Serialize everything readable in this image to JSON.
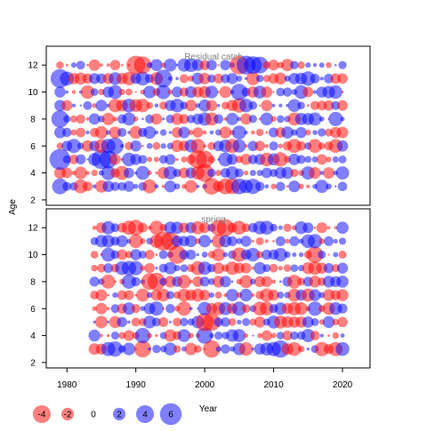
{
  "chart_data": {
    "type": "scatter",
    "ylabel": "Age",
    "xlabel": "Year",
    "x_ticks": [
      1980,
      1990,
      2000,
      2010,
      2020
    ],
    "y_ticks": [
      2,
      4,
      6,
      8,
      10,
      12
    ],
    "xlim": [
      1977,
      2024
    ],
    "ylim": [
      1.6,
      13.4
    ],
    "colors": {
      "positive": "#0000ff",
      "negative": "#ff0000",
      "alpha": 0.5
    },
    "panels": [
      {
        "title": "Residual catch",
        "years": [
          1979,
          2020
        ],
        "ages": [
          3,
          12
        ],
        "seed": 71,
        "highlights": [
          [
            1979,
            5,
            5.6
          ],
          [
            1979,
            11,
            4.5
          ],
          [
            1979,
            8,
            3.8
          ],
          [
            1979,
            3,
            3.2
          ],
          [
            1985,
            5,
            4.8
          ],
          [
            1986,
            5,
            4.0
          ],
          [
            1987,
            6,
            3.6
          ],
          [
            1990,
            12,
            -4.5
          ],
          [
            1991,
            12,
            -3.8
          ],
          [
            1994,
            11,
            4.0
          ],
          [
            1999,
            5,
            -4.2
          ],
          [
            2000,
            4,
            -4.0
          ],
          [
            2000,
            5,
            -3.9
          ],
          [
            2001,
            3,
            -3.5
          ],
          [
            2003,
            3,
            -3.2
          ],
          [
            2004,
            3,
            -3.0
          ],
          [
            2005,
            12,
            -4.5
          ],
          [
            2006,
            12,
            4.5
          ],
          [
            2007,
            12,
            4.0
          ],
          [
            2008,
            12,
            3.6
          ],
          [
            2005,
            10,
            3.5
          ],
          [
            2005,
            3,
            3.2
          ],
          [
            2007,
            3,
            3.0
          ]
        ]
      },
      {
        "title": "spring",
        "years": [
          1984,
          2020
        ],
        "ages": [
          3,
          12
        ],
        "seed": 137,
        "highlights": [
          [
            1994,
            11,
            -4.5
          ],
          [
            1995,
            11,
            -4.2
          ],
          [
            1996,
            10,
            -4.2
          ],
          [
            1993,
            8,
            -4.0
          ],
          [
            1992,
            8,
            -3.5
          ],
          [
            1991,
            3,
            -3.6
          ],
          [
            1990,
            12,
            -3.2
          ],
          [
            2000,
            5,
            -4.2
          ],
          [
            2001,
            5,
            -3.9
          ],
          [
            2001,
            3,
            -3.8
          ],
          [
            2003,
            12,
            -3.8
          ],
          [
            2002,
            12,
            -3.2
          ],
          [
            2011,
            3,
            3.8
          ],
          [
            2000,
            4,
            3.4
          ],
          [
            1991,
            4,
            3.0
          ],
          [
            1987,
            3,
            3.0
          ],
          [
            2016,
            10,
            -3.5
          ]
        ]
      }
    ],
    "legend": {
      "values": [
        -4,
        -2,
        0,
        2,
        4,
        6
      ],
      "labels": [
        "-4",
        "-2",
        "0",
        "2",
        "4",
        "6"
      ]
    }
  }
}
